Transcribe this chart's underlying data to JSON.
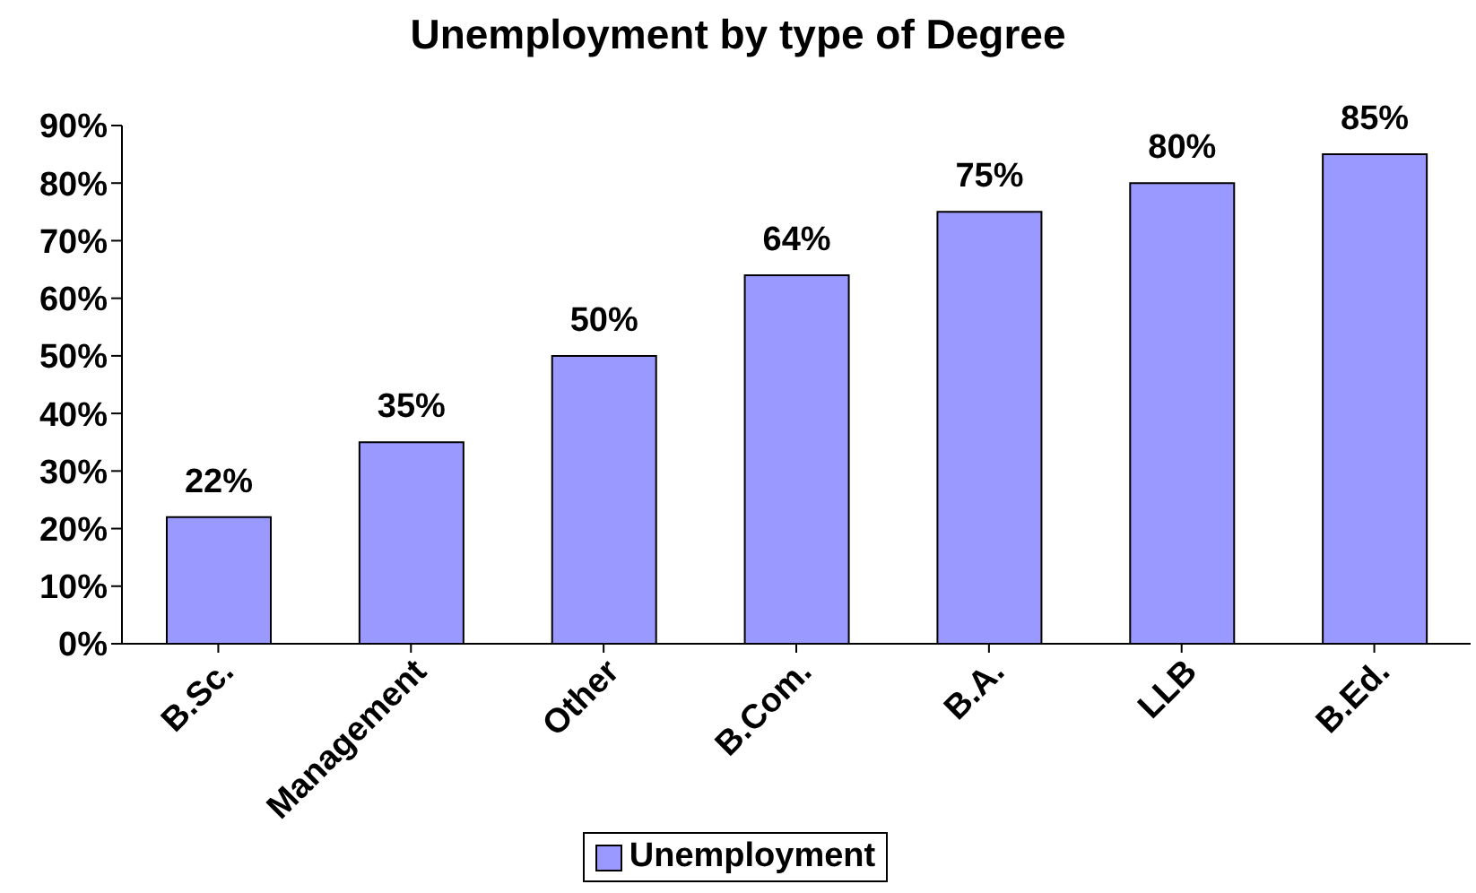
{
  "chart_data": {
    "type": "bar",
    "title": "Unemployment by type of Degree",
    "categories": [
      "B.Sc.",
      "Management",
      "Other",
      "B.Com.",
      "B.A.",
      "LLB",
      "B.Ed."
    ],
    "series": [
      {
        "name": "Unemployment",
        "color": "#9999ff",
        "values": [
          22,
          35,
          50,
          64,
          75,
          80,
          85
        ],
        "value_labels": [
          "22%",
          "35%",
          "50%",
          "64%",
          "75%",
          "80%",
          "85%"
        ]
      }
    ],
    "ylim": [
      0,
      90
    ],
    "yticks": [
      {
        "value": 0,
        "label": "0%"
      },
      {
        "value": 10,
        "label": "10%"
      },
      {
        "value": 20,
        "label": "20%"
      },
      {
        "value": 30,
        "label": "30%"
      },
      {
        "value": 40,
        "label": "40%"
      },
      {
        "value": 50,
        "label": "50%"
      },
      {
        "value": 60,
        "label": "60%"
      },
      {
        "value": 70,
        "label": "70%"
      },
      {
        "value": 80,
        "label": "80%"
      },
      {
        "value": 90,
        "label": "90%"
      }
    ],
    "legend": "bottom",
    "grid": false
  }
}
